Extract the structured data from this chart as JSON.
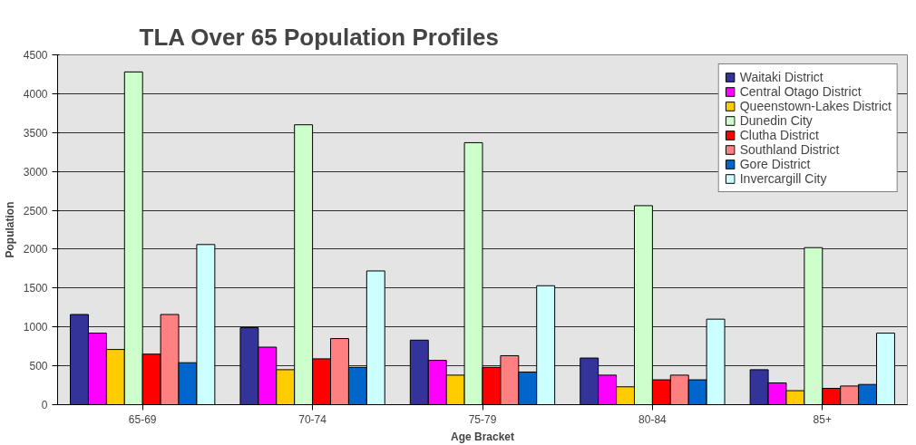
{
  "chart_data": {
    "type": "bar",
    "title": "TLA Over 65 Population Profiles",
    "xlabel": "Age Bracket",
    "ylabel": "Population",
    "categories": [
      "65-69",
      "70-74",
      "75-79",
      "80-84",
      "85+"
    ],
    "series": [
      {
        "name": "Waitaki District",
        "color": "#333399",
        "values": [
          1160,
          990,
          830,
          600,
          450
        ]
      },
      {
        "name": "Central Otago District",
        "color": "#ff00ff",
        "values": [
          920,
          740,
          570,
          380,
          280
        ]
      },
      {
        "name": "Queenstown-Lakes District",
        "color": "#ffcc00",
        "values": [
          710,
          450,
          380,
          230,
          180
        ]
      },
      {
        "name": "Dunedin City",
        "color": "#ccffcc",
        "values": [
          4280,
          3600,
          3370,
          2560,
          2020
        ]
      },
      {
        "name": "Clutha District",
        "color": "#ff0000",
        "values": [
          650,
          590,
          480,
          320,
          210
        ]
      },
      {
        "name": "Southland District",
        "color": "#ff8080",
        "values": [
          1160,
          850,
          630,
          380,
          240
        ]
      },
      {
        "name": "Gore District",
        "color": "#0066cc",
        "values": [
          540,
          480,
          420,
          320,
          260
        ]
      },
      {
        "name": "Invercargill City",
        "color": "#ccffff",
        "values": [
          2060,
          1720,
          1530,
          1100,
          920
        ]
      }
    ],
    "ylim": [
      0,
      4500
    ],
    "yticks": [
      0,
      500,
      1000,
      1500,
      2000,
      2500,
      3000,
      3500,
      4000,
      4500
    ],
    "grid": "y",
    "legend": "top right"
  }
}
